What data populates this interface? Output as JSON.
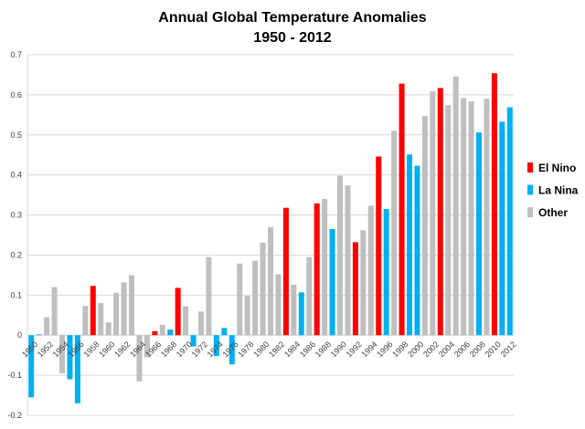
{
  "chart_data": {
    "type": "bar",
    "title": "Annual Global Temperature Anomalies",
    "subtitle": "1950 - 2012",
    "xlabel": "",
    "ylabel": "",
    "ylim": [
      -0.2,
      0.7
    ],
    "yticks": [
      "-0.2",
      "-0.1",
      "0",
      "0.1",
      "0.2",
      "0.3",
      "0.4",
      "0.5",
      "0.6",
      "0.7"
    ],
    "grid": true,
    "legend_position": "right",
    "legend": [
      {
        "key": "elnino",
        "label": "El Nino",
        "color": "#ff0000"
      },
      {
        "key": "lanina",
        "label": "La Nina",
        "color": "#00b0f0"
      },
      {
        "key": "other",
        "label": "Other",
        "color": "#bfbfbf"
      }
    ],
    "x": [
      1950,
      1951,
      1952,
      1953,
      1954,
      1955,
      1956,
      1957,
      1958,
      1959,
      1960,
      1961,
      1962,
      1963,
      1964,
      1965,
      1966,
      1967,
      1968,
      1969,
      1970,
      1971,
      1972,
      1973,
      1974,
      1975,
      1976,
      1977,
      1978,
      1979,
      1980,
      1981,
      1982,
      1983,
      1984,
      1985,
      1986,
      1987,
      1988,
      1989,
      1990,
      1991,
      1992,
      1993,
      1994,
      1995,
      1996,
      1997,
      1998,
      1999,
      2000,
      2001,
      2002,
      2003,
      2004,
      2005,
      2006,
      2007,
      2008,
      2009,
      2010,
      2011,
      2012
    ],
    "values": [
      -0.155,
      0.002,
      0.045,
      0.12,
      -0.095,
      -0.11,
      -0.17,
      0.073,
      0.123,
      0.08,
      0.032,
      0.106,
      0.132,
      0.15,
      -0.115,
      -0.055,
      0.01,
      0.026,
      0.014,
      0.118,
      0.072,
      -0.028,
      0.059,
      0.195,
      -0.052,
      0.018,
      -0.073,
      0.179,
      0.098,
      0.186,
      0.231,
      0.27,
      0.152,
      0.318,
      0.126,
      0.107,
      0.195,
      0.329,
      0.34,
      0.265,
      0.398,
      0.374,
      0.232,
      0.262,
      0.323,
      0.446,
      0.315,
      0.51,
      0.628,
      0.451,
      0.423,
      0.547,
      0.609,
      0.617,
      0.574,
      0.646,
      0.592,
      0.584,
      0.506,
      0.59,
      0.654,
      0.533,
      0.569
    ],
    "category": [
      "lanina",
      "lanina",
      "other",
      "other",
      "other",
      "lanina",
      "lanina",
      "other",
      "elnino",
      "other",
      "other",
      "other",
      "other",
      "other",
      "other",
      "other",
      "elnino",
      "other",
      "lanina",
      "elnino",
      "other",
      "lanina",
      "other",
      "other",
      "lanina",
      "lanina",
      "lanina",
      "other",
      "other",
      "other",
      "other",
      "other",
      "other",
      "elnino",
      "other",
      "lanina",
      "other",
      "elnino",
      "other",
      "lanina",
      "other",
      "other",
      "elnino",
      "other",
      "other",
      "elnino",
      "lanina",
      "other",
      "elnino",
      "lanina",
      "lanina",
      "other",
      "other",
      "elnino",
      "other",
      "other",
      "other",
      "other",
      "lanina",
      "other",
      "elnino",
      "lanina",
      "lanina"
    ],
    "xtick_labels": [
      "1950",
      "1952",
      "1954",
      "1956",
      "1958",
      "1960",
      "1962",
      "1964",
      "1966",
      "1968",
      "1970",
      "1972",
      "1974",
      "1976",
      "1978",
      "1980",
      "1982",
      "1984",
      "1986",
      "1988",
      "1990",
      "1992",
      "1994",
      "1996",
      "1998",
      "2000",
      "2002",
      "2004",
      "2006",
      "2008",
      "2010",
      "2012"
    ]
  }
}
